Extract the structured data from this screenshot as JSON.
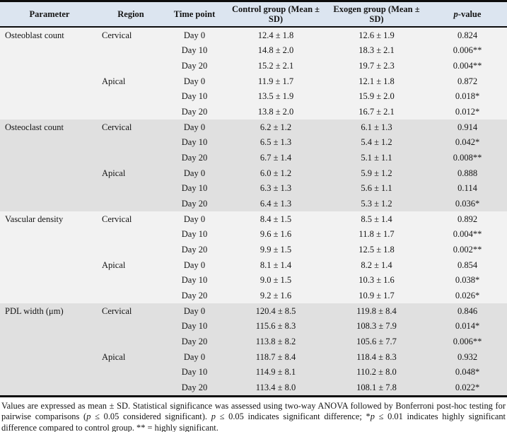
{
  "colors": {
    "header_bg": "#dce5f0",
    "section_light": "#f2f2f2",
    "section_dark": "#e0e0e0",
    "rule": "#0d0d0d"
  },
  "table": {
    "headers": [
      "Parameter",
      "Region",
      "Time point",
      "Control group (Mean ± SD)",
      "Exogen group (Mean ± SD)",
      "p-value"
    ],
    "rows": [
      {
        "parameter": "Osteoblast count",
        "region": "Cervical",
        "time_point": "Day 0",
        "control": "12.4 ± 1.8",
        "exogen": "12.6 ± 1.9",
        "p_value": "0.824",
        "shade": "light"
      },
      {
        "parameter": "",
        "region": "",
        "time_point": "Day 10",
        "control": "14.8 ± 2.0",
        "exogen": "18.3 ± 2.1",
        "p_value": "0.006**",
        "shade": "light"
      },
      {
        "parameter": "",
        "region": "",
        "time_point": "Day 20",
        "control": "15.2 ± 2.1",
        "exogen": "19.7 ± 2.3",
        "p_value": "0.004**",
        "shade": "light"
      },
      {
        "parameter": "",
        "region": "Apical",
        "time_point": "Day 0",
        "control": "11.9 ± 1.7",
        "exogen": "12.1 ± 1.8",
        "p_value": "0.872",
        "shade": "light"
      },
      {
        "parameter": "",
        "region": "",
        "time_point": "Day 10",
        "control": "13.5 ± 1.9",
        "exogen": "15.9 ± 2.0",
        "p_value": "0.018*",
        "shade": "light"
      },
      {
        "parameter": "",
        "region": "",
        "time_point": "Day 20",
        "control": "13.8 ± 2.0",
        "exogen": "16.7 ± 2.1",
        "p_value": "0.012*",
        "shade": "light"
      },
      {
        "parameter": "Osteoclast count",
        "region": "Cervical",
        "time_point": "Day 0",
        "control": "6.2 ± 1.2",
        "exogen": "6.1 ± 1.3",
        "p_value": "0.914",
        "shade": "dark"
      },
      {
        "parameter": "",
        "region": "",
        "time_point": "Day 10",
        "control": "6.5 ± 1.3",
        "exogen": "5.4 ± 1.2",
        "p_value": "0.042*",
        "shade": "dark"
      },
      {
        "parameter": "",
        "region": "",
        "time_point": "Day 20",
        "control": "6.7 ± 1.4",
        "exogen": "5.1 ± 1.1",
        "p_value": "0.008**",
        "shade": "dark"
      },
      {
        "parameter": "",
        "region": "Apical",
        "time_point": "Day 0",
        "control": "6.0 ± 1.2",
        "exogen": "5.9 ± 1.2",
        "p_value": "0.888",
        "shade": "dark"
      },
      {
        "parameter": "",
        "region": "",
        "time_point": "Day 10",
        "control": "6.3 ± 1.3",
        "exogen": "5.6 ± 1.1",
        "p_value": "0.114",
        "shade": "dark"
      },
      {
        "parameter": "",
        "region": "",
        "time_point": "Day 20",
        "control": "6.4 ± 1.3",
        "exogen": "5.3 ± 1.2",
        "p_value": "0.036*",
        "shade": "dark"
      },
      {
        "parameter": "Vascular density",
        "region": "Cervical",
        "time_point": "Day 0",
        "control": "8.4 ± 1.5",
        "exogen": "8.5 ± 1.4",
        "p_value": "0.892",
        "shade": "light"
      },
      {
        "parameter": "",
        "region": "",
        "time_point": "Day 10",
        "control": "9.6 ± 1.6",
        "exogen": "11.8 ± 1.7",
        "p_value": "0.004**",
        "shade": "light"
      },
      {
        "parameter": "",
        "region": "",
        "time_point": "Day 20",
        "control": "9.9 ± 1.5",
        "exogen": "12.5 ± 1.8",
        "p_value": "0.002**",
        "shade": "light"
      },
      {
        "parameter": "",
        "region": "Apical",
        "time_point": "Day 0",
        "control": "8.1 ± 1.4",
        "exogen": "8.2 ± 1.4",
        "p_value": "0.854",
        "shade": "light"
      },
      {
        "parameter": "",
        "region": "",
        "time_point": "Day 10",
        "control": "9.0 ± 1.5",
        "exogen": "10.3 ± 1.6",
        "p_value": "0.038*",
        "shade": "light"
      },
      {
        "parameter": "",
        "region": "",
        "time_point": "Day 20",
        "control": "9.2 ± 1.6",
        "exogen": "10.9 ± 1.7",
        "p_value": "0.026*",
        "shade": "light"
      },
      {
        "parameter": "PDL width (μm)",
        "region": "Cervical",
        "time_point": "Day 0",
        "control": "120.4 ± 8.5",
        "exogen": "119.8 ± 8.4",
        "p_value": "0.846",
        "shade": "dark"
      },
      {
        "parameter": "",
        "region": "",
        "time_point": "Day 10",
        "control": "115.6 ± 8.3",
        "exogen": "108.3 ± 7.9",
        "p_value": "0.014*",
        "shade": "dark"
      },
      {
        "parameter": "",
        "region": "",
        "time_point": "Day 20",
        "control": "113.8 ± 8.2",
        "exogen": "105.6 ± 7.7",
        "p_value": "0.006**",
        "shade": "dark"
      },
      {
        "parameter": "",
        "region": "Apical",
        "time_point": "Day 0",
        "control": "118.7 ± 8.4",
        "exogen": "118.4 ± 8.3",
        "p_value": "0.932",
        "shade": "dark"
      },
      {
        "parameter": "",
        "region": "",
        "time_point": "Day 10",
        "control": "114.9 ± 8.1",
        "exogen": "110.2 ± 8.0",
        "p_value": "0.048*",
        "shade": "dark"
      },
      {
        "parameter": "",
        "region": "",
        "time_point": "Day 20",
        "control": "113.4 ± 8.0",
        "exogen": "108.1 ± 7.8",
        "p_value": "0.022*",
        "shade": "dark"
      }
    ],
    "footnote": "Values are expressed as mean ± SD. Statistical significance was assessed using two-way ANOVA followed by Bonferroni post-hoc testing for pairwise comparisons (p ≤ 0.05 considered significant). p ≤ 0.05 indicates significant difference; *p ≤ 0.01 indicates highly significant difference compared to control group. ** = highly significant."
  }
}
